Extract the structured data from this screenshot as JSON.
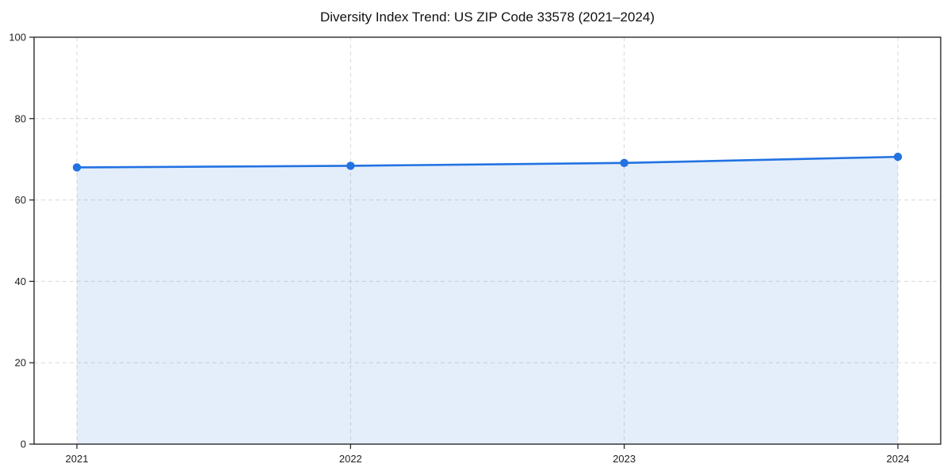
{
  "chart_data": {
    "type": "area",
    "title": "Diversity Index Trend: US ZIP Code 33578 (2021–2024)",
    "x": [
      2021,
      2022,
      2023,
      2024
    ],
    "xtick_labels": [
      "2021",
      "2022",
      "2023",
      "2024"
    ],
    "series": [
      {
        "name": "Diversity Index",
        "values": [
          68.0,
          68.4,
          69.1,
          70.6
        ]
      }
    ],
    "xlabel": "",
    "ylabel": "",
    "ylim": [
      0,
      100
    ],
    "yticks": [
      0,
      20,
      40,
      60,
      80,
      100
    ],
    "grid": true,
    "grid_style": "dashed",
    "legend": "none",
    "marker": "circle",
    "colors": {
      "line": "#2272e2",
      "fill": "#2272e2",
      "fill_opacity": 0.12,
      "grid": "#cfcfcf",
      "axis": "#1a1a1a",
      "tick_label": "#1f1f1f",
      "title": "#111111",
      "background": "#ffffff"
    }
  }
}
